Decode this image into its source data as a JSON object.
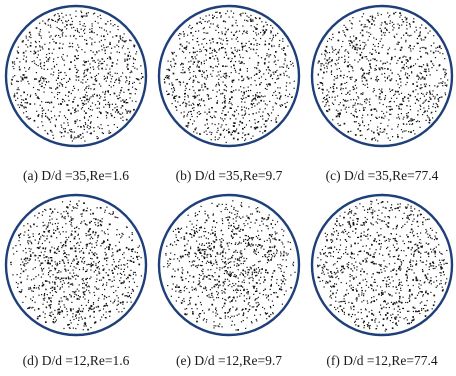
{
  "figure": {
    "ring_color": "#1f3f7a",
    "particle_color": "#111111",
    "panels": [
      {
        "caption": "(a) D/d =35,Re=1.6",
        "seed": 11,
        "particles": 900,
        "distribution": "uniform"
      },
      {
        "caption": "(b) D/d =35,Re=9.7",
        "seed": 23,
        "particles": 900,
        "distribution": "uniform"
      },
      {
        "caption": "(c) D/d =35,Re=77.4",
        "seed": 37,
        "particles": 900,
        "distribution": "uniform"
      },
      {
        "caption": "(d) D/d =12,Re=1.6",
        "seed": 41,
        "particles": 950,
        "distribution": "center-clustered"
      },
      {
        "caption": "(e) D/d =12,Re=9.7",
        "seed": 53,
        "particles": 950,
        "distribution": "center-clustered"
      },
      {
        "caption": "(f) D/d =12,Re=77.4",
        "seed": 67,
        "particles": 950,
        "distribution": "uniform"
      }
    ]
  }
}
